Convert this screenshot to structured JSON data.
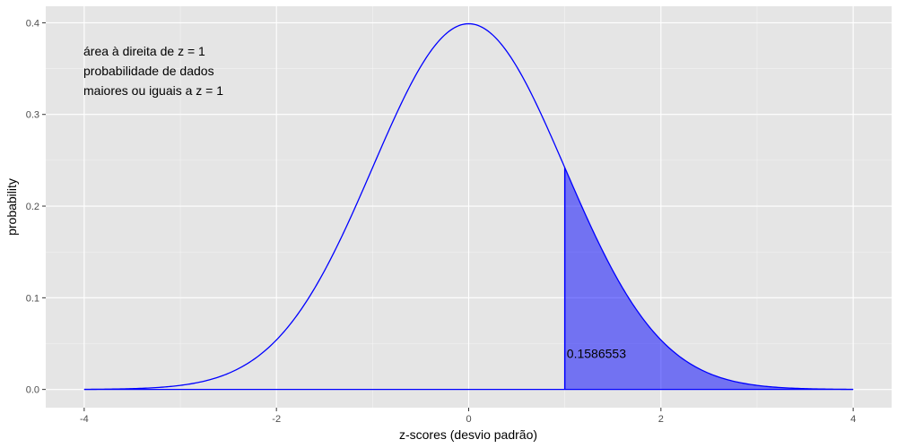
{
  "chart_data": {
    "type": "area",
    "title": "",
    "xlabel": "z-scores (desvio padrão)",
    "ylabel": "probability",
    "xlim": [
      -4.4,
      4.4
    ],
    "ylim": [
      -0.0199,
      0.418
    ],
    "xticks": [
      -4,
      -2,
      0,
      2,
      4
    ],
    "xtick_labels": [
      "-4",
      "-2",
      "0",
      "2",
      "4"
    ],
    "yticks": [
      0.0,
      0.1,
      0.2,
      0.3,
      0.4
    ],
    "ytick_labels": [
      "0.0",
      "0.1",
      "0.2",
      "0.3",
      "0.4"
    ],
    "grid": true,
    "curve": {
      "distribution": "standard normal density",
      "mean": 0,
      "sd": 1,
      "x_range": [
        -4,
        4
      ],
      "peak": 0.3989,
      "color": "#0000ff"
    },
    "shaded_region": {
      "from_x": 1,
      "to_x": 4,
      "fill": "#0000ff",
      "fill_opacity": 0.5,
      "label": "0.1586553",
      "label_anchor": {
        "x": 1.02,
        "y": 0.039
      }
    },
    "annotations": [
      {
        "text": "área à direita de z = 1"
      },
      {
        "text": "probabilidade de dados"
      },
      {
        "text": "maiores ou iguais a z = 1"
      }
    ],
    "colors": {
      "panel_background": "#e5e5e5",
      "grid_major": "#ffffff",
      "curve": "#0000ff",
      "text": "#000000",
      "tick_text": "#4d4d4d"
    }
  }
}
